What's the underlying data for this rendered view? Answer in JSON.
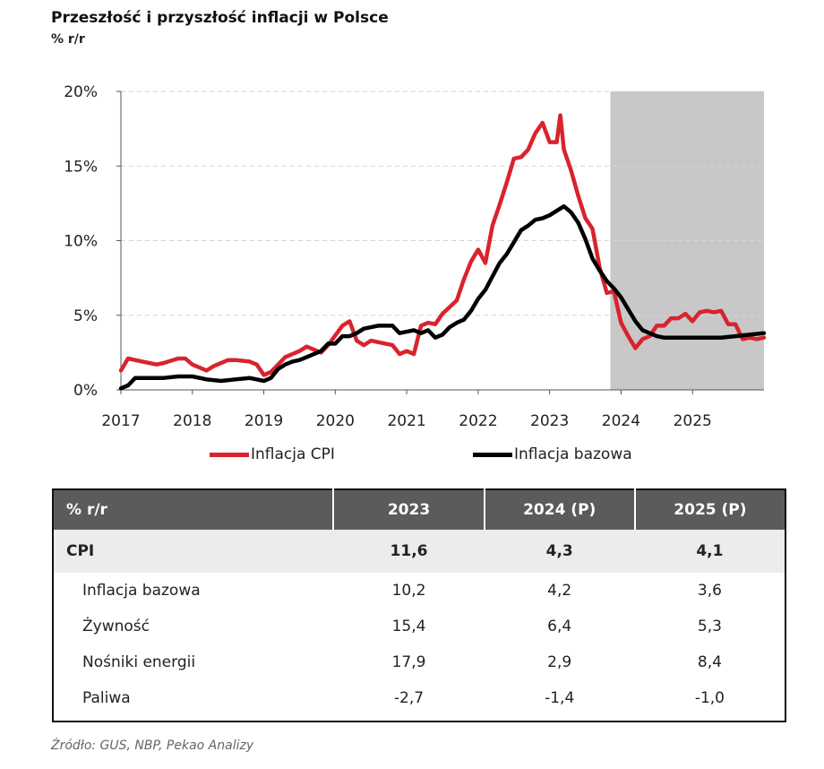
{
  "title": "Przeszłość i przyszłość inflacji w Polsce",
  "unit_label": "% r/r",
  "source": "Źródło: GUS, NBP, Pekao Analizy",
  "colors": {
    "cpi": "#d9232d",
    "core": "#000000",
    "forecast_band": "#c8c8c8",
    "grid": "#d6d6d6"
  },
  "chart_data": {
    "type": "line",
    "x_ticks": [
      "2017",
      "2018",
      "2019",
      "2020",
      "2021",
      "2022",
      "2023",
      "2024",
      "2025"
    ],
    "y_ticks": [
      "0%",
      "5%",
      "10%",
      "15%",
      "20%"
    ],
    "ylim": [
      0,
      20
    ],
    "xlim": [
      2017,
      2026
    ],
    "grid": "horizontal dashed",
    "legend_placement": "bottom",
    "forecast_shading_from": 2023.85,
    "series": [
      {
        "name": "Inflacja CPI",
        "color": "#d9232d",
        "points": [
          [
            2017.0,
            1.3
          ],
          [
            2017.1,
            2.1
          ],
          [
            2017.3,
            1.9
          ],
          [
            2017.5,
            1.7
          ],
          [
            2017.6,
            1.8
          ],
          [
            2017.8,
            2.1
          ],
          [
            2017.9,
            2.1
          ],
          [
            2018.0,
            1.7
          ],
          [
            2018.2,
            1.3
          ],
          [
            2018.3,
            1.6
          ],
          [
            2018.5,
            2.0
          ],
          [
            2018.6,
            2.0
          ],
          [
            2018.8,
            1.9
          ],
          [
            2018.9,
            1.7
          ],
          [
            2019.0,
            1.0
          ],
          [
            2019.1,
            1.2
          ],
          [
            2019.3,
            2.2
          ],
          [
            2019.5,
            2.6
          ],
          [
            2019.6,
            2.9
          ],
          [
            2019.8,
            2.5
          ],
          [
            2019.9,
            3.0
          ],
          [
            2020.1,
            4.3
          ],
          [
            2020.2,
            4.6
          ],
          [
            2020.3,
            3.3
          ],
          [
            2020.4,
            3.0
          ],
          [
            2020.5,
            3.3
          ],
          [
            2020.7,
            3.1
          ],
          [
            2020.8,
            3.0
          ],
          [
            2020.9,
            2.4
          ],
          [
            2021.0,
            2.6
          ],
          [
            2021.1,
            2.4
          ],
          [
            2021.2,
            4.3
          ],
          [
            2021.3,
            4.5
          ],
          [
            2021.4,
            4.4
          ],
          [
            2021.5,
            5.1
          ],
          [
            2021.7,
            6.0
          ],
          [
            2021.8,
            7.4
          ],
          [
            2021.9,
            8.6
          ],
          [
            2022.0,
            9.4
          ],
          [
            2022.1,
            8.5
          ],
          [
            2022.2,
            11.0
          ],
          [
            2022.3,
            12.4
          ],
          [
            2022.4,
            13.9
          ],
          [
            2022.5,
            15.5
          ],
          [
            2022.6,
            15.6
          ],
          [
            2022.7,
            16.1
          ],
          [
            2022.8,
            17.2
          ],
          [
            2022.9,
            17.9
          ],
          [
            2023.0,
            16.6
          ],
          [
            2023.1,
            16.6
          ],
          [
            2023.15,
            18.4
          ],
          [
            2023.2,
            16.1
          ],
          [
            2023.3,
            14.7
          ],
          [
            2023.4,
            13.0
          ],
          [
            2023.5,
            11.5
          ],
          [
            2023.6,
            10.8
          ],
          [
            2023.7,
            8.2
          ],
          [
            2023.8,
            6.5
          ],
          [
            2023.9,
            6.6
          ],
          [
            2024.0,
            4.5
          ],
          [
            2024.1,
            3.6
          ],
          [
            2024.2,
            2.8
          ],
          [
            2024.3,
            3.4
          ],
          [
            2024.4,
            3.6
          ],
          [
            2024.5,
            4.3
          ],
          [
            2024.6,
            4.3
          ],
          [
            2024.7,
            4.8
          ],
          [
            2024.8,
            4.8
          ],
          [
            2024.9,
            5.1
          ],
          [
            2025.0,
            4.6
          ],
          [
            2025.1,
            5.2
          ],
          [
            2025.2,
            5.3
          ],
          [
            2025.3,
            5.2
          ],
          [
            2025.4,
            5.3
          ],
          [
            2025.5,
            4.4
          ],
          [
            2025.6,
            4.4
          ],
          [
            2025.7,
            3.4
          ],
          [
            2025.8,
            3.5
          ],
          [
            2025.9,
            3.4
          ],
          [
            2026.0,
            3.5
          ]
        ]
      },
      {
        "name": "Inflacja bazowa",
        "color": "#000000",
        "points": [
          [
            2017.0,
            0.1
          ],
          [
            2017.1,
            0.3
          ],
          [
            2017.2,
            0.8
          ],
          [
            2017.4,
            0.8
          ],
          [
            2017.6,
            0.8
          ],
          [
            2017.8,
            0.9
          ],
          [
            2018.0,
            0.9
          ],
          [
            2018.2,
            0.7
          ],
          [
            2018.4,
            0.6
          ],
          [
            2018.6,
            0.7
          ],
          [
            2018.8,
            0.8
          ],
          [
            2019.0,
            0.6
          ],
          [
            2019.1,
            0.8
          ],
          [
            2019.2,
            1.4
          ],
          [
            2019.3,
            1.7
          ],
          [
            2019.4,
            1.9
          ],
          [
            2019.5,
            2.0
          ],
          [
            2019.6,
            2.2
          ],
          [
            2019.8,
            2.6
          ],
          [
            2019.9,
            3.1
          ],
          [
            2020.0,
            3.1
          ],
          [
            2020.1,
            3.6
          ],
          [
            2020.2,
            3.6
          ],
          [
            2020.3,
            3.8
          ],
          [
            2020.4,
            4.1
          ],
          [
            2020.6,
            4.3
          ],
          [
            2020.8,
            4.3
          ],
          [
            2020.9,
            3.8
          ],
          [
            2021.0,
            3.9
          ],
          [
            2021.1,
            4.0
          ],
          [
            2021.2,
            3.8
          ],
          [
            2021.3,
            4.0
          ],
          [
            2021.4,
            3.5
          ],
          [
            2021.5,
            3.7
          ],
          [
            2021.6,
            4.2
          ],
          [
            2021.7,
            4.5
          ],
          [
            2021.8,
            4.7
          ],
          [
            2021.9,
            5.3
          ],
          [
            2022.0,
            6.1
          ],
          [
            2022.1,
            6.7
          ],
          [
            2022.2,
            7.6
          ],
          [
            2022.3,
            8.5
          ],
          [
            2022.4,
            9.1
          ],
          [
            2022.5,
            9.9
          ],
          [
            2022.6,
            10.7
          ],
          [
            2022.7,
            11.0
          ],
          [
            2022.8,
            11.4
          ],
          [
            2022.9,
            11.5
          ],
          [
            2023.0,
            11.7
          ],
          [
            2023.1,
            12.0
          ],
          [
            2023.2,
            12.3
          ],
          [
            2023.3,
            11.9
          ],
          [
            2023.4,
            11.2
          ],
          [
            2023.5,
            10.1
          ],
          [
            2023.6,
            8.8
          ],
          [
            2023.7,
            8.0
          ],
          [
            2023.8,
            7.3
          ],
          [
            2023.9,
            6.8
          ],
          [
            2024.0,
            6.2
          ],
          [
            2024.1,
            5.4
          ],
          [
            2024.2,
            4.6
          ],
          [
            2024.3,
            4.0
          ],
          [
            2024.4,
            3.8
          ],
          [
            2024.5,
            3.6
          ],
          [
            2024.6,
            3.5
          ],
          [
            2024.7,
            3.5
          ],
          [
            2024.8,
            3.5
          ],
          [
            2024.9,
            3.5
          ],
          [
            2025.0,
            3.5
          ],
          [
            2025.2,
            3.5
          ],
          [
            2025.4,
            3.5
          ],
          [
            2025.6,
            3.6
          ],
          [
            2025.8,
            3.7
          ],
          [
            2026.0,
            3.8
          ]
        ]
      }
    ]
  },
  "table": {
    "headers": [
      "% r/r",
      "2023",
      "2024 (P)",
      "2025 (P)"
    ],
    "rows": [
      {
        "label": "CPI",
        "values": [
          "11,6",
          "4,3",
          "4,1"
        ]
      },
      {
        "label": "Inflacja bazowa",
        "values": [
          "10,2",
          "4,2",
          "3,6"
        ]
      },
      {
        "label": "Żywność",
        "values": [
          "15,4",
          "6,4",
          "5,3"
        ]
      },
      {
        "label": "Nośniki energii",
        "values": [
          "17,9",
          "2,9",
          "8,4"
        ]
      },
      {
        "label": "Paliwa",
        "values": [
          "-2,7",
          "-1,4",
          "-1,0"
        ]
      }
    ]
  }
}
